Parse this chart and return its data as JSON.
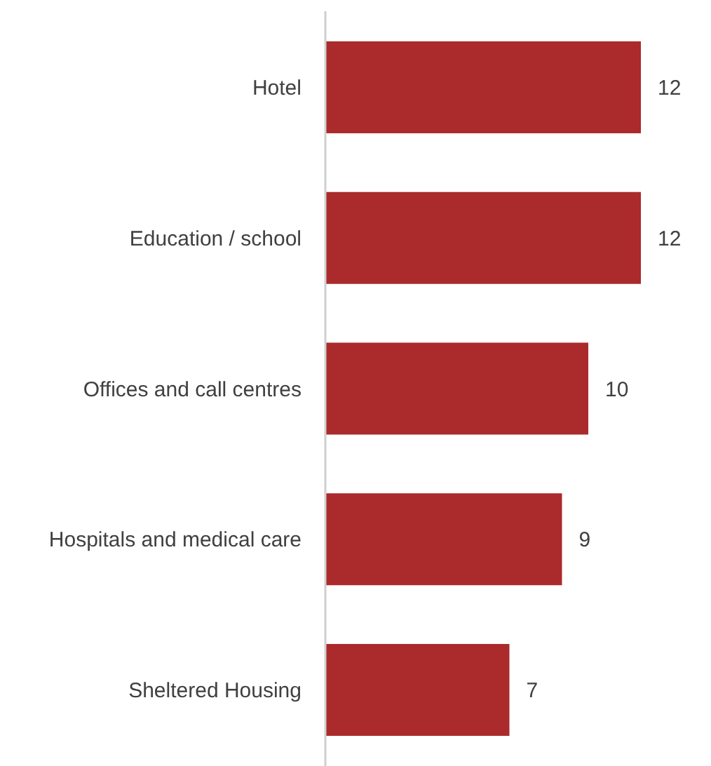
{
  "chart_data": {
    "type": "bar",
    "orientation": "horizontal",
    "categories": [
      "Hotel",
      "Education / school",
      "Offices and call centres",
      "Hospitals and medical care",
      "Sheltered Housing"
    ],
    "values": [
      12,
      12,
      10,
      9,
      7
    ],
    "color": "#ab2a2c",
    "data_labels": true
  }
}
